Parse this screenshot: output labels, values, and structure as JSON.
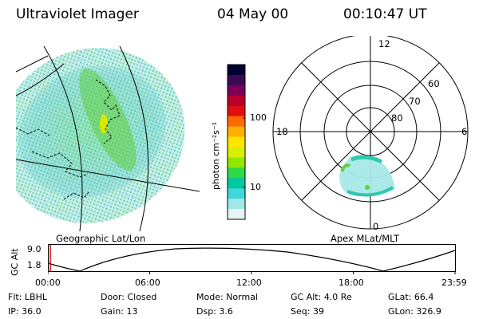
{
  "header": {
    "instrument": "Ultraviolet Imager",
    "date": "04 May 00",
    "time": "00:10:47 UT"
  },
  "geo_panel": {
    "caption": "Geographic Lat/Lon"
  },
  "polar_panel": {
    "caption": "Apex MLat/MLT",
    "mlt_labels": {
      "top": "12",
      "left": "18",
      "right": "6",
      "bottom": "0"
    },
    "lat_labels": [
      "60",
      "70",
      "80"
    ]
  },
  "colorbar": {
    "unit_label": "photon cm⁻²s⁻¹",
    "ticks": [
      "100",
      "10"
    ],
    "colors": [
      "#000033",
      "#3b0a52",
      "#7a0058",
      "#b8002a",
      "#e01010",
      "#ff6a00",
      "#ffb000",
      "#ffe600",
      "#d8f000",
      "#90e800",
      "#30d848",
      "#00c8a0",
      "#40d8d8",
      "#a0e8e8",
      "#e8f4f4"
    ]
  },
  "timeline": {
    "ylabel": "GC Alt",
    "y_ticks": [
      "9.0",
      "1.8"
    ],
    "x_ticks": [
      "00:00",
      "06:00",
      "12:00",
      "18:00",
      "23:59"
    ]
  },
  "status": {
    "row1": [
      {
        "key": "Flt:",
        "val": "LBHL"
      },
      {
        "key": "Door:",
        "val": "Closed"
      },
      {
        "key": "Mode:",
        "val": "Normal"
      },
      {
        "key": "GC Alt:",
        "val": "4.0 Re"
      },
      {
        "key": "GLat:",
        "val": "66.4"
      }
    ],
    "row2": [
      {
        "key": "IP:",
        "val": "36.0"
      },
      {
        "key": "Gain:",
        "val": "13"
      },
      {
        "key": "Dsp:",
        "val": "3.6"
      },
      {
        "key": "Seq:",
        "val": "39"
      },
      {
        "key": "GLon:",
        "val": "326.9"
      }
    ]
  }
}
